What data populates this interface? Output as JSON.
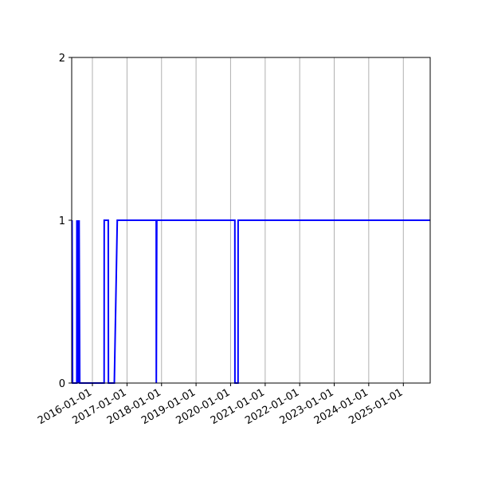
{
  "chart_data": {
    "type": "line",
    "title": "",
    "xlabel": "",
    "ylabel": "",
    "x_type": "date",
    "xlim": [
      "2015-05-27",
      "2025-10-12"
    ],
    "ylim": [
      0,
      2
    ],
    "yticks": [
      "0",
      "1",
      "2"
    ],
    "xticks": [
      "2016-01-01",
      "2017-01-01",
      "2018-01-01",
      "2019-01-01",
      "2020-01-01",
      "2021-01-01",
      "2022-01-01",
      "2023-01-01",
      "2024-01-01",
      "2025-01-01"
    ],
    "grid": "x-only",
    "series": [
      {
        "color": "#0000ff",
        "points": [
          [
            "2015-05-30",
            1
          ],
          [
            "2015-06-05",
            0
          ],
          [
            "2015-07-20",
            0
          ],
          [
            "2015-07-21",
            1
          ],
          [
            "2015-07-26",
            0
          ],
          [
            "2015-07-29",
            1
          ],
          [
            "2015-08-12",
            0
          ],
          [
            "2015-08-13",
            1
          ],
          [
            "2015-08-20",
            0
          ],
          [
            "2016-05-04",
            0
          ],
          [
            "2016-05-05",
            1
          ],
          [
            "2016-06-17",
            1
          ],
          [
            "2016-06-18",
            0
          ],
          [
            "2016-08-20",
            0
          ],
          [
            "2016-09-20",
            1
          ],
          [
            "2017-11-06",
            1
          ],
          [
            "2017-11-07",
            0
          ],
          [
            "2017-11-12",
            1
          ],
          [
            "2020-02-15",
            1
          ],
          [
            "2020-02-16",
            0
          ],
          [
            "2020-03-20",
            0
          ],
          [
            "2020-03-21",
            1
          ],
          [
            "2025-10-12",
            1
          ]
        ]
      }
    ]
  }
}
